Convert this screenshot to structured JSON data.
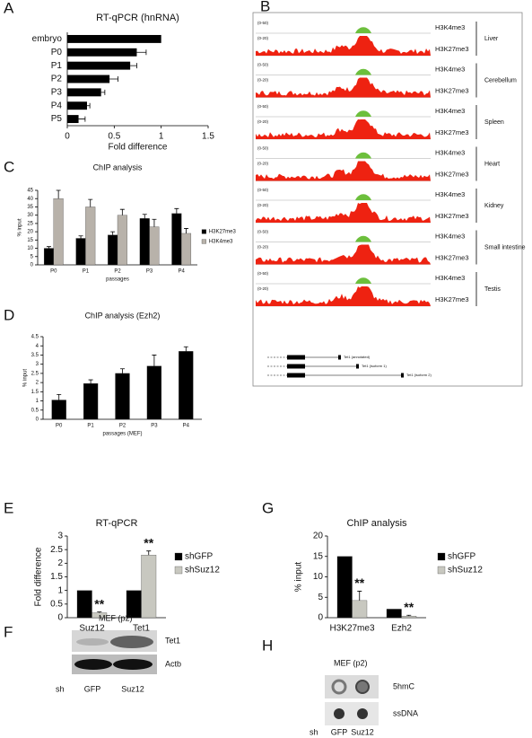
{
  "panel_letters": [
    "A",
    "B",
    "C",
    "D",
    "E",
    "F",
    "G",
    "H"
  ],
  "chart_data": [
    {
      "type": "barh",
      "title": "RT-qPCR (hnRNA)",
      "categories": [
        "embryo",
        "P0",
        "P1",
        "P2",
        "P3",
        "P4",
        "P5"
      ],
      "values": [
        1,
        0.74,
        0.67,
        0.45,
        0.36,
        0.21,
        0.12
      ],
      "errors": [
        null,
        0.1,
        0.07,
        0.09,
        0.04,
        0.03,
        0.07
      ],
      "color": "#000000",
      "xlabel": "Fold difference",
      "xlim": [
        0,
        1.5
      ],
      "xticks": [
        0,
        0.5,
        1,
        1.5
      ]
    },
    {
      "type": "bar",
      "title": "ChIP analysis",
      "categories": [
        "P0",
        "P1",
        "P2",
        "P3",
        "P4"
      ],
      "series": [
        {
          "name": "H3K27me3",
          "color": "#000000",
          "values": [
            10,
            16,
            18,
            28,
            31
          ],
          "errors": [
            1,
            1.5,
            2,
            2.5,
            3
          ]
        },
        {
          "name": "H3K4me3",
          "color": "#b8b2aa",
          "values": [
            40,
            35,
            30,
            23,
            19
          ],
          "errors": [
            5,
            4.5,
            3.5,
            4.5,
            3
          ]
        }
      ],
      "xlabel": "passages",
      "ylabel": "% input",
      "ylim": [
        0,
        45
      ],
      "yticks": [
        0,
        5,
        10,
        15,
        20,
        25,
        30,
        35,
        40,
        45
      ]
    },
    {
      "type": "bar",
      "title": "ChIP analysis (Ezh2)",
      "categories": [
        "P0",
        "P1",
        "P2",
        "P3",
        "P4"
      ],
      "values": [
        1.05,
        1.95,
        2.5,
        2.9,
        3.7
      ],
      "errors": [
        0.3,
        0.2,
        0.25,
        0.6,
        0.25
      ],
      "color": "#000000",
      "xlabel": "passages (MEF)",
      "ylabel": "% input",
      "ylim": [
        0,
        4.5
      ],
      "yticks": [
        0,
        0.5,
        1,
        1.5,
        2,
        2.5,
        3,
        3.5,
        4,
        4.5
      ]
    },
    {
      "type": "bar",
      "title": "RT-qPCR",
      "categories": [
        "Suz12",
        "Tet1"
      ],
      "series": [
        {
          "name": "shGFP",
          "color": "#000000",
          "values": [
            1,
            1
          ],
          "errors": [
            null,
            null
          ]
        },
        {
          "name": "shSuz12",
          "color": "#c8c8c0",
          "values": [
            0.18,
            2.3
          ],
          "errors": [
            0.03,
            0.15
          ]
        }
      ],
      "annotations": [
        "**",
        "**"
      ],
      "ylabel": "Fold difference",
      "ylim": [
        0,
        3
      ],
      "yticks": [
        0,
        0.5,
        1,
        1.5,
        2,
        2.5,
        3
      ]
    },
    {
      "type": "bar",
      "title": "ChIP analysis",
      "categories": [
        "H3K27me3",
        "Ezh2"
      ],
      "series": [
        {
          "name": "shGFP",
          "color": "#000000",
          "values": [
            15,
            2.1
          ],
          "errors": [
            null,
            null
          ]
        },
        {
          "name": "shSuz12",
          "color": "#c8c8c0",
          "values": [
            4.2,
            0.4
          ],
          "errors": [
            2.3,
            0.2
          ]
        }
      ],
      "annotations": [
        "**",
        "**"
      ],
      "ylabel": "% input",
      "ylim": [
        0,
        20
      ],
      "yticks": [
        0,
        5,
        10,
        15,
        20
      ]
    }
  ],
  "panel_b": {
    "marks": [
      "H3K4me3",
      "H3K27me3"
    ],
    "ranges": [
      "(0-50)",
      "(0-20)"
    ],
    "tissues": [
      "Liver",
      "Cerebellum",
      "Spleen",
      "Heart",
      "Kidney",
      "Small intestine",
      "Testis"
    ],
    "isoforms": [
      "Tet1 (annotated)",
      "Tet1 (isoform 1)",
      "Tet1 (isoform 2)"
    ]
  },
  "panel_f": {
    "header": "MEF (p2)",
    "rows": [
      "Tet1",
      "Actb"
    ],
    "sh": "sh",
    "lanes": [
      "GFP",
      "Suz12"
    ]
  },
  "panel_h": {
    "header": "MEF (p2)",
    "rows": [
      "5hmC",
      "ssDNA"
    ],
    "sh": "sh",
    "lanes": [
      "GFP",
      "Suz12"
    ]
  }
}
